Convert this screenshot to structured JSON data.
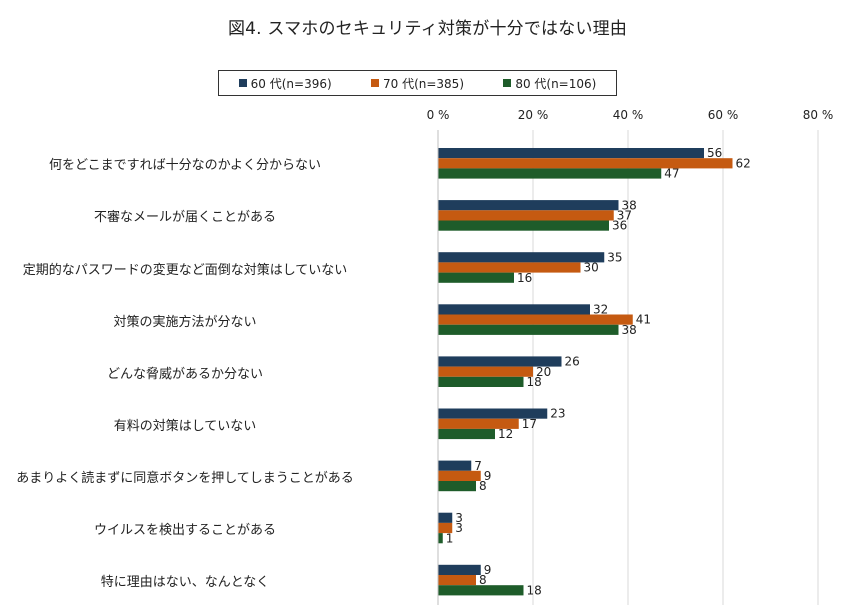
{
  "page_title": "図4. スマホのセキュリティ対策が十分ではない理由",
  "chart_data": {
    "type": "bar",
    "orientation": "horizontal",
    "title": "図4. スマホのセキュリティ対策が十分ではない理由",
    "xlabel": "",
    "ylabel": "",
    "xlim": [
      0,
      80
    ],
    "x_ticks": [
      0,
      20,
      40,
      60,
      80
    ],
    "x_tick_labels": [
      "0 %",
      "20 %",
      "40 %",
      "60 %",
      "80 %"
    ],
    "grid": true,
    "legend_position": "top",
    "categories": [
      "何をどこまですれば十分なのかよく分からない",
      "不審なメールが届くことがある",
      "定期的なパスワードの変更など面倒な対策はしていない",
      "対策の実施方法が分ない",
      "どんな脅威があるか分ない",
      "有料の対策はしていない",
      "あまりよく読まずに同意ボタンを押してしまうことがある",
      "ウイルスを検出することがある",
      "特に理由はない、なんとなく"
    ],
    "series": [
      {
        "name": "60 代(n=396)",
        "color": "#1f3d5c",
        "values": [
          56,
          38,
          35,
          32,
          26,
          23,
          7,
          3,
          9
        ]
      },
      {
        "name": "70 代(n=385)",
        "color": "#c55a11",
        "values": [
          62,
          37,
          30,
          41,
          20,
          17,
          9,
          3,
          8
        ]
      },
      {
        "name": "80 代(n=106)",
        "color": "#1e5c2a",
        "values": [
          47,
          36,
          16,
          38,
          18,
          12,
          8,
          1,
          18
        ]
      }
    ]
  }
}
